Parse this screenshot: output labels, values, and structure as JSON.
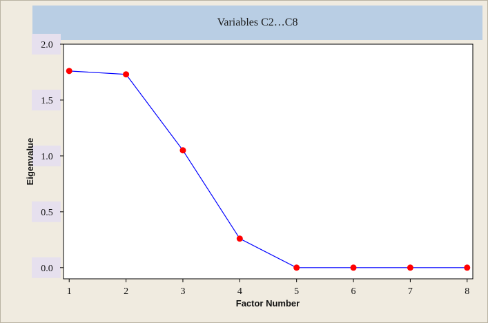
{
  "chart_data": {
    "type": "line",
    "title": "Variables C2…C8",
    "xlabel": "Factor Number",
    "ylabel": "Eigenvalue",
    "x": [
      1,
      2,
      3,
      4,
      5,
      6,
      7,
      8
    ],
    "values": [
      1.76,
      1.73,
      1.05,
      0.26,
      0.0,
      0.0,
      0.0,
      0.0
    ],
    "xlim": [
      0.9,
      8.1
    ],
    "ylim": [
      -0.1,
      2.0
    ],
    "yticks": [
      "0.0",
      "0.5",
      "1.0",
      "1.5",
      "2.0"
    ],
    "xticks": [
      "1",
      "2",
      "3",
      "4",
      "5",
      "6",
      "7",
      "8"
    ],
    "grid": false,
    "line_color": "#0000ff",
    "marker_color": "#ff0000",
    "title_bg": "#b9cee4",
    "frame_bg": "#f0ebe0"
  }
}
